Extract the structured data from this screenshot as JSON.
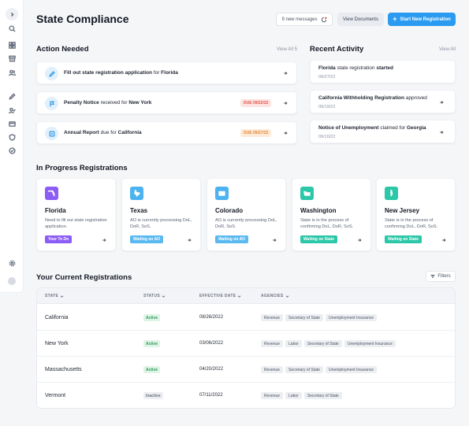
{
  "header": {
    "title": "State Compliance",
    "messages_label": "9 new messages",
    "view_docs_label": "View Documents",
    "start_label": "Start New Registration"
  },
  "action_needed": {
    "title": "Action Needed",
    "view_all": "View All 5",
    "items": [
      {
        "icon": "pencil-icon",
        "bold1": "Fill out state registration application",
        "mid": " for ",
        "bold2": "Florida",
        "due": ""
      },
      {
        "icon": "flag-icon",
        "bold1": "Penalty Notice",
        "mid": " received for ",
        "bold2": "New York",
        "due": "DUE 09/22/22"
      },
      {
        "icon": "report-icon",
        "bold1": "Annual Report",
        "mid": " due for ",
        "bold2": "California",
        "due": "DUE 09/27/22"
      }
    ]
  },
  "recent_activity": {
    "title": "Recent Activity",
    "view_all": "View All",
    "items": [
      {
        "bold1": "Florida",
        "mid": " state registration ",
        "bold2": "started",
        "date": "09/27/22"
      },
      {
        "bold1": "California Withholding Registration",
        "mid": " approved",
        "bold2": "",
        "date": "09/19/22"
      },
      {
        "bold1": "Notice of Unemployment",
        "mid": " claimed for ",
        "bold2": "Georgia",
        "date": "09/10/22"
      }
    ]
  },
  "in_progress": {
    "title": "In Progress Registrations",
    "items": [
      {
        "name": "Florida",
        "desc": "Need to fill out state registration application.",
        "pill": "Your To Do",
        "color": "#8b5cf6",
        "pill_color": "#8b5cf6"
      },
      {
        "name": "Texas",
        "desc": "AO is currently processing DoL, DoR, SoS.",
        "pill": "Waiting on AO",
        "color": "#4db2f0",
        "pill_color": "#5bb9f2"
      },
      {
        "name": "Colorado",
        "desc": "AO is currently processing DoL, DoR, SoS.",
        "pill": "Waiting on AO",
        "color": "#4db2f0",
        "pill_color": "#5bb9f2"
      },
      {
        "name": "Washington",
        "desc": "State is in the process of confirming DoL, DoR, SoS.",
        "pill": "Waiting on State",
        "color": "#2cc7a8",
        "pill_color": "#2cc7a8"
      },
      {
        "name": "New Jersey",
        "desc": "State is in the process of confirming DoL, DoR, SoS.",
        "pill": "Waiting on State",
        "color": "#2cc7a8",
        "pill_color": "#2cc7a8"
      }
    ]
  },
  "registrations": {
    "title": "Your Current Registrations",
    "filters_label": "Filters",
    "columns": [
      "STATE",
      "STATUS",
      "EFFECTIVE DATE",
      "AGENCIES"
    ],
    "rows": [
      {
        "state": "California",
        "status": "Active",
        "date": "08/26/2022",
        "agencies": [
          "Revenue",
          "Secretary of State",
          "Unemployment Insurance"
        ]
      },
      {
        "state": "New York",
        "status": "Active",
        "date": "03/06/2022",
        "agencies": [
          "Revenue",
          "Labor",
          "Secretary of State",
          "Unemployment Insurance"
        ]
      },
      {
        "state": "Massachusetts",
        "status": "Active",
        "date": "04/20/2022",
        "agencies": [
          "Revenue",
          "Secretary of State",
          "Unemployment Insurance"
        ]
      },
      {
        "state": "Vermont",
        "status": "Inactive",
        "date": "07/11/2022",
        "agencies": [
          "Revenue",
          "Labor",
          "Secretary of State"
        ]
      }
    ]
  },
  "colors": {
    "accent": "#2a9bf0",
    "due_red": "#e2574c",
    "due_orange": "#e8862f"
  }
}
